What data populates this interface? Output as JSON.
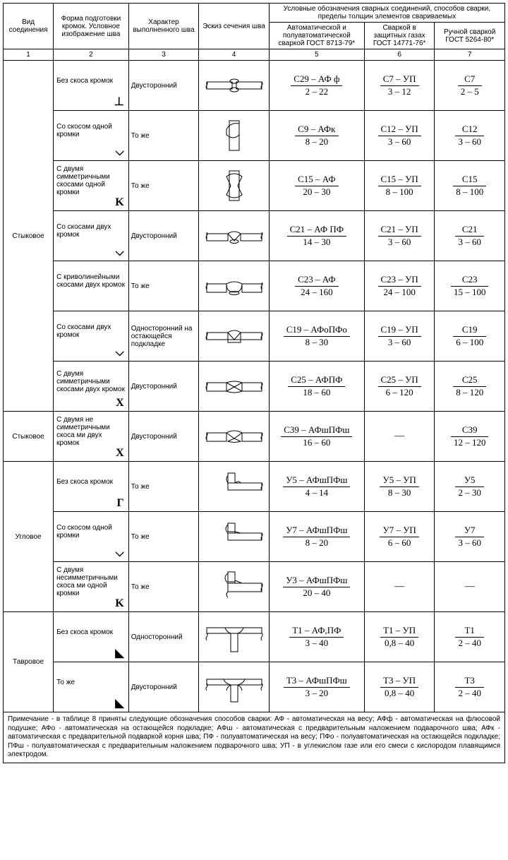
{
  "headers": {
    "c1": "Вид соединения",
    "c2": "Форма подготовки кромок. Условное изображение шва",
    "c3": "Характер выполненного шва",
    "c4": "Эскиз сечения шва",
    "c567": "Условные обозначения сварных соединений, способов сварки, пределы толщин элементов свариваемых",
    "c5": "Автоматической и полуавтоматической сваркой ГОСТ 8713-79*",
    "c6": "Сваркой в защитных газах ГОСТ 14771-76*",
    "c7": "Ручной сваркой ГОСТ 5264-80*",
    "n1": "1",
    "n2": "2",
    "n3": "3",
    "n4": "4",
    "n5": "5",
    "n6": "6",
    "n7": "7"
  },
  "groups": {
    "butt1": "Стыковое",
    "butt2": "Стыковое",
    "corner": "Угловое",
    "tee": "Тавровое"
  },
  "rows": {
    "r1": {
      "groove": "Без скоса кромок",
      "sym": "⊥",
      "char": "Двусторонний",
      "c5t": "С29 – АФ ф",
      "c5b": "2 – 22",
      "c6t": "С7 – УП",
      "c6b": "3 – 12",
      "c7t": "С7",
      "c7b": "2 – 5"
    },
    "r2": {
      "groove": "Со скосом одной кромки",
      "sym": "⌵",
      "char": "То же",
      "c5t": "С9 – АФк",
      "c5b": "8 – 20",
      "c6t": "С12 – УП",
      "c6b": "3 – 60",
      "c7t": "С12",
      "c7b": "3 – 60"
    },
    "r3": {
      "groove": "С двумя симметричными скосами одной кромки",
      "sym": "K",
      "char": "То же",
      "c5t": "С15 – АФ",
      "c5b": "20 – 30",
      "c6t": "С15 – УП",
      "c6b": "8 – 100",
      "c7t": "С15",
      "c7b": "8 – 100"
    },
    "r4": {
      "groove": "Со скосами двух кромок",
      "sym": "⌵",
      "char": "Двусторонний",
      "c5t": "С21 – АФ  ПФ",
      "c5b": "14 – 30",
      "c6t": "С21 – УП",
      "c6b": "3 – 60",
      "c7t": "С21",
      "c7b": "3 – 60"
    },
    "r5": {
      "groove": "С криволинейными скосами двух кромок",
      "sym": "",
      "char": "То же",
      "c5t": "С23 – АФ",
      "c5b": "24 – 160",
      "c6t": "С23 – УП",
      "c6b": "24 – 100",
      "c7t": "С23",
      "c7b": "15 – 100"
    },
    "r6": {
      "groove": "Со скосами двух кромок",
      "sym": "⌵",
      "char": "Односторонний на остающейся подкладке",
      "c5t": "С19 – АФоПФо",
      "c5b": "8 – 30",
      "c6t": "С19 – УП",
      "c6b": "3 – 60",
      "c7t": "С19",
      "c7b": "6 – 100"
    },
    "r7": {
      "groove": "С двумя симметричными скосами двух кромок",
      "sym": "X",
      "char": "Двусторонний",
      "c5t": "С25 – АФПФ",
      "c5b": "18 – 60",
      "c6t": "С25 – УП",
      "c6b": "6 – 120",
      "c7t": "С25",
      "c7b": "8 – 120"
    },
    "r8": {
      "groove": "С двумя не симметричными скоса ми двух кромок",
      "sym": "X",
      "char": "Двусторонний",
      "c5t": "С39 – АФшПФш",
      "c5b": "16 – 60",
      "c6t": "—",
      "c6b": "",
      "c7t": "С39",
      "c7b": "12 – 120"
    },
    "r9": {
      "groove": "Без скоса кромок",
      "sym": "Г",
      "char": "То же",
      "c5t": "У5 – АФшПФш",
      "c5b": "4 – 14",
      "c6t": "У5 – УП",
      "c6b": "8 – 30",
      "c7t": "У5",
      "c7b": "2 – 30"
    },
    "r10": {
      "groove": "Со скосом одной кромки",
      "sym": "⌵",
      "char": "То же",
      "c5t": "У7 – АФшПФш",
      "c5b": "8 – 20",
      "c6t": "У7 – УП",
      "c6b": "6 – 60",
      "c7t": "У7",
      "c7b": "3 – 60"
    },
    "r11": {
      "groove": "С двумя несимметричными скоса ми одной кромки",
      "sym": "K",
      "char": "То же",
      "c5t": "У3 – АФшПФш",
      "c5b": "20 – 40",
      "c6t": "—",
      "c6b": "",
      "c7t": "—",
      "c7b": ""
    },
    "r12": {
      "groove": "Без скоса кромок",
      "sym": "◣",
      "char": "Односторонний",
      "c5t": "Т1 – АФ,ПФ",
      "c5b": "3 – 40",
      "c6t": "Т1 – УП",
      "c6b": "0,8 – 40",
      "c7t": "Т1",
      "c7b": "2 – 40"
    },
    "r13": {
      "groove": "То же",
      "sym": "◣",
      "char": "Двусторонний",
      "c5t": "Т3 – АФшПФш",
      "c5b": "3 – 20",
      "c6t": "Т3 – УП",
      "c6b": "0,8 – 40",
      "c7t": "Т3",
      "c7b": "2 – 40"
    }
  },
  "note": "Примечание - в таблице 8 приняты следующие обозначения способов сварки: АФ - автоматическая на весу; АФф - автоматическая на флюсовой подушке; АФо - автоматическая на остающейся подкладке; АФш - автоматическая с предварительным наложением подварочного шва; АФк - автоматическая с предварительной подваркой корня шва; ПФ - полуавтоматическая на весу; ПФо - полуавтоматическая на остающейся подкладке; ПФш - полуавтоматическая с предварительным наложением подварочного шва; УП - в углекислом газе или его смеси с кислородом плавящимся электродом.",
  "style": {
    "col_widths_pct": [
      10,
      15,
      14,
      14,
      19,
      14,
      14
    ],
    "font_family": "Arial",
    "border_color": "#000000",
    "background": "#ffffff",
    "sketch_stroke": "#000000",
    "sketch_stroke_width": 1
  }
}
